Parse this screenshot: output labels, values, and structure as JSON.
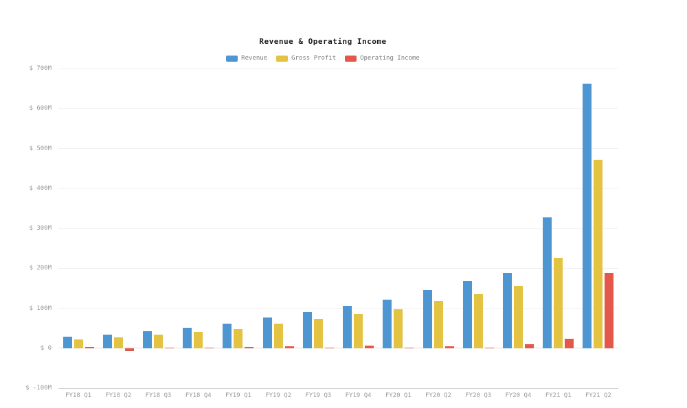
{
  "page": {
    "background": "#ffffff"
  },
  "chart_data": {
    "type": "bar",
    "title": "Revenue & Operating Income",
    "categories": [
      "FY18 Q1",
      "FY18 Q2",
      "FY18 Q3",
      "FY18 Q4",
      "FY19 Q1",
      "FY19 Q2",
      "FY19 Q3",
      "FY19 Q4",
      "FY20 Q1",
      "FY20 Q2",
      "FY20 Q3",
      "FY20 Q4",
      "FY21 Q1",
      "FY21 Q2"
    ],
    "series": [
      {
        "name": "Revenue",
        "color": "#4D96D2",
        "values": [
          28,
          34,
          42,
          51,
          61,
          76,
          90,
          106,
          122,
          146,
          167,
          188,
          328,
          663
        ]
      },
      {
        "name": "Gross Profit",
        "color": "#E4C242",
        "values": [
          22,
          27,
          34,
          41,
          48,
          62,
          74,
          86,
          98,
          118,
          136,
          156,
          226,
          471
        ]
      },
      {
        "name": "Operating Income",
        "color": "#E4584C",
        "values": [
          3,
          -7,
          1,
          1,
          3,
          5,
          2,
          7,
          2,
          5,
          2,
          10,
          23,
          188
        ]
      }
    ],
    "xlabel": "",
    "ylabel": "",
    "ylim": [
      -100,
      700
    ],
    "yticks": [
      {
        "value": 700,
        "label": "$ 700M"
      },
      {
        "value": 600,
        "label": "$ 600M"
      },
      {
        "value": 500,
        "label": "$ 500M"
      },
      {
        "value": 400,
        "label": "$ 400M"
      },
      {
        "value": 300,
        "label": "$ 300M"
      },
      {
        "value": 200,
        "label": "$ 200M"
      },
      {
        "value": 100,
        "label": "$ 100M"
      },
      {
        "value": 0,
        "label": "$ 0"
      },
      {
        "value": -100,
        "label": "$ -100M"
      }
    ],
    "grid": true,
    "legend_position": "top-center",
    "colors": {
      "gridline": "#F0F0F0",
      "zero_line": "#DCDCDC",
      "axis_line": "#D2D2D2",
      "tick_text": "#9B9B9B",
      "legend_text": "#7D7D7D",
      "title_text": "#1A1A1A"
    }
  }
}
